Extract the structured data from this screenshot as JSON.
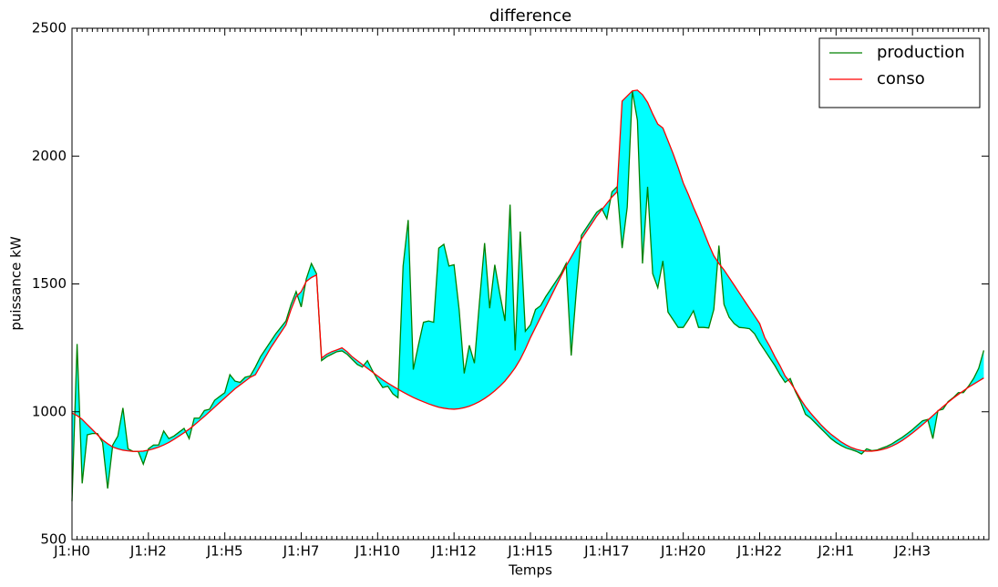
{
  "chart_data": {
    "type": "line",
    "title": "difference",
    "x_label": "Temps",
    "y_label": "puissance kW",
    "categories": [
      "J1:H0",
      null,
      null,
      null,
      null,
      null,
      null,
      null,
      null,
      null,
      null,
      null,
      null,
      null,
      null,
      "J1:H2",
      null,
      null,
      null,
      null,
      null,
      null,
      null,
      null,
      null,
      null,
      null,
      null,
      null,
      null,
      "J1:H5",
      null,
      null,
      null,
      null,
      null,
      null,
      null,
      null,
      null,
      null,
      null,
      null,
      null,
      null,
      "J1:H7",
      null,
      null,
      null,
      null,
      null,
      null,
      null,
      null,
      null,
      null,
      null,
      null,
      null,
      null,
      "J1:H10",
      null,
      null,
      null,
      null,
      null,
      null,
      null,
      null,
      null,
      null,
      null,
      null,
      null,
      null,
      "J1:H12",
      null,
      null,
      null,
      null,
      null,
      null,
      null,
      null,
      null,
      null,
      null,
      null,
      null,
      null,
      "J1:H15",
      null,
      null,
      null,
      null,
      null,
      null,
      null,
      null,
      null,
      null,
      null,
      null,
      null,
      null,
      "J1:H17",
      null,
      null,
      null,
      null,
      null,
      null,
      null,
      null,
      null,
      null,
      null,
      null,
      null,
      null,
      "J1:H20",
      null,
      null,
      null,
      null,
      null,
      null,
      null,
      null,
      null,
      null,
      null,
      null,
      null,
      null,
      "J1:H22",
      null,
      null,
      null,
      null,
      null,
      null,
      null,
      null,
      null,
      null,
      null,
      null,
      null,
      null,
      "J2:H1",
      null,
      null,
      null,
      null,
      null,
      null,
      null,
      null,
      null,
      null,
      null,
      null,
      null,
      null,
      "J2:H3",
      null,
      null,
      null,
      null,
      null,
      null,
      null,
      null,
      null,
      null,
      null,
      null,
      null,
      null
    ],
    "series": [
      {
        "name": "production",
        "color": "#008000",
        "values": [
          650,
          1265,
          720,
          910,
          915,
          915,
          880,
          700,
          870,
          905,
          1015,
          855,
          845,
          845,
          795,
          855,
          870,
          870,
          925,
          895,
          905,
          920,
          935,
          895,
          975,
          975,
          1005,
          1010,
          1045,
          1060,
          1075,
          1145,
          1120,
          1115,
          1135,
          1140,
          1175,
          1215,
          1245,
          1275,
          1305,
          1330,
          1355,
          1420,
          1470,
          1410,
          1520,
          1580,
          1540,
          1200,
          1215,
          1225,
          1235,
          1238,
          1225,
          1205,
          1185,
          1175,
          1200,
          1160,
          1125,
          1095,
          1100,
          1070,
          1055,
          1570,
          1750,
          1165,
          1260,
          1350,
          1355,
          1350,
          1640,
          1655,
          1570,
          1575,
          1400,
          1150,
          1260,
          1190,
          1430,
          1660,
          1405,
          1575,
          1460,
          1355,
          1810,
          1240,
          1705,
          1315,
          1340,
          1400,
          1415,
          1450,
          1480,
          1510,
          1540,
          1580,
          1220,
          1470,
          1690,
          1720,
          1750,
          1780,
          1795,
          1755,
          1860,
          1880,
          1640,
          1800,
          2255,
          2140,
          1580,
          1880,
          1540,
          1485,
          1590,
          1390,
          1360,
          1330,
          1330,
          1360,
          1395,
          1330,
          1330,
          1328,
          1400,
          1650,
          1420,
          1370,
          1345,
          1330,
          1328,
          1325,
          1305,
          1270,
          1240,
          1210,
          1180,
          1145,
          1115,
          1130,
          1080,
          1040,
          990,
          975,
          955,
          935,
          915,
          895,
          880,
          868,
          858,
          852,
          845,
          835,
          855,
          848,
          850,
          858,
          865,
          875,
          888,
          900,
          915,
          930,
          948,
          965,
          970,
          895,
          1005,
          1010,
          1040,
          1055,
          1075,
          1075,
          1100,
          1130,
          1170,
          1240
        ]
      },
      {
        "name": "conso",
        "color": "#ff0000",
        "values": [
          995,
          985,
          970,
          950,
          930,
          910,
          890,
          875,
          862,
          855,
          850,
          847,
          845,
          845,
          846,
          850,
          855,
          862,
          870,
          880,
          892,
          905,
          918,
          932,
          948,
          965,
          982,
          1000,
          1018,
          1036,
          1054,
          1072,
          1090,
          1105,
          1120,
          1135,
          1145,
          1180,
          1215,
          1250,
          1280,
          1310,
          1340,
          1400,
          1450,
          1470,
          1510,
          1525,
          1535,
          1210,
          1225,
          1235,
          1242,
          1250,
          1235,
          1215,
          1200,
          1185,
          1170,
          1155,
          1140,
          1125,
          1112,
          1100,
          1088,
          1077,
          1066,
          1056,
          1047,
          1039,
          1031,
          1024,
          1018,
          1014,
          1011,
          1010,
          1012,
          1016,
          1022,
          1030,
          1040,
          1052,
          1066,
          1082,
          1100,
          1120,
          1145,
          1172,
          1205,
          1245,
          1290,
          1330,
          1370,
          1410,
          1450,
          1490,
          1530,
          1570,
          1605,
          1640,
          1675,
          1705,
          1735,
          1765,
          1790,
          1815,
          1840,
          1860,
          2215,
          2235,
          2255,
          2258,
          2240,
          2210,
          2165,
          2125,
          2110,
          2060,
          2010,
          1955,
          1895,
          1850,
          1800,
          1755,
          1705,
          1655,
          1610,
          1580,
          1555,
          1525,
          1495,
          1465,
          1435,
          1405,
          1375,
          1345,
          1290,
          1255,
          1215,
          1180,
          1140,
          1115,
          1085,
          1050,
          1020,
          995,
          972,
          950,
          930,
          912,
          897,
          882,
          870,
          860,
          853,
          848,
          846,
          846,
          848,
          852,
          858,
          866,
          876,
          888,
          902,
          917,
          933,
          950,
          967,
          985,
          1003,
          1020,
          1037,
          1053,
          1068,
          1082,
          1096,
          1108,
          1120,
          1132
        ]
      }
    ],
    "fill_color": "#00ffff",
    "ylim": [
      500,
      2500
    ],
    "yticks": [
      500,
      1000,
      1500,
      2000,
      2500
    ],
    "legend": "upper right"
  }
}
